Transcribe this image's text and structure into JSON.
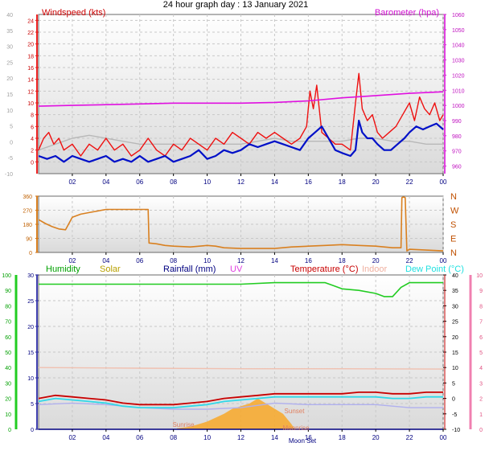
{
  "title": "24 hour graph day : 13 January 2021",
  "chart_data": [
    {
      "type": "line",
      "id": "wind-baro",
      "title": "",
      "label_left": "Windspeed (kts)",
      "label_right": "Barometer (hpa)",
      "x_ticks": [
        "02",
        "04",
        "06",
        "08",
        "10",
        "12",
        "14",
        "16",
        "18",
        "20",
        "22",
        "00"
      ],
      "xlim": [
        0,
        24
      ],
      "left_outer": {
        "ticks": [
          -10,
          -5,
          0,
          5,
          10,
          15,
          20,
          25,
          30,
          35,
          40
        ],
        "lim": [
          -10,
          40
        ]
      },
      "left_inner": {
        "ticks": [
          0,
          2,
          4,
          6,
          8,
          10,
          12,
          14,
          16,
          18,
          20,
          22,
          24
        ],
        "lim": [
          -2,
          25
        ]
      },
      "right": {
        "ticks": [
          960,
          970,
          980,
          990,
          1000,
          1010,
          1020,
          1030,
          1040,
          1050,
          1060
        ],
        "lim": [
          955,
          1060
        ]
      },
      "series": [
        {
          "name": "Barometer (hpa)",
          "color": "#e010e0",
          "x": [
            0,
            2,
            4,
            6,
            8,
            10,
            12,
            14,
            16,
            18,
            20,
            22,
            24
          ],
          "y": [
            999.5,
            1000,
            1000.5,
            1001,
            1001.5,
            1001.5,
            1001.5,
            1002,
            1003,
            1005,
            1006.5,
            1008,
            1009
          ]
        },
        {
          "color": "#ee1111",
          "x": [
            0,
            0.3,
            0.6,
            0.9,
            1.2,
            1.5,
            2,
            2.5,
            3,
            3.5,
            4,
            4.5,
            5,
            5.5,
            6,
            6.5,
            7,
            7.5,
            8,
            8.5,
            9,
            9.5,
            10,
            10.5,
            11,
            11.5,
            12,
            12.5,
            13,
            13.5,
            14,
            14.5,
            15,
            15.5,
            15.9,
            16.1,
            16.3,
            16.5,
            16.8,
            17.2,
            17.6,
            18,
            18.5,
            18.8,
            19,
            19.2,
            19.5,
            19.8,
            20.1,
            20.4,
            20.8,
            21.2,
            21.6,
            22,
            22.3,
            22.6,
            22.9,
            23.2,
            23.5,
            23.8,
            24
          ],
          "y": [
            2,
            4,
            5,
            3,
            4,
            2,
            3,
            1,
            3,
            2,
            4,
            2,
            3,
            1,
            2,
            4,
            2,
            1,
            3,
            2,
            4,
            3,
            2,
            4,
            3,
            5,
            4,
            3,
            5,
            4,
            5,
            4,
            3,
            4,
            6,
            12,
            9,
            13,
            5,
            4,
            3,
            3,
            2,
            10,
            15,
            9,
            7,
            8,
            5,
            4,
            5,
            6,
            8,
            10,
            7,
            11,
            9,
            8,
            10,
            7,
            8
          ]
        },
        {
          "color": "#0010c8",
          "x": [
            0,
            0.5,
            1,
            1.5,
            2,
            2.5,
            3,
            3.5,
            4,
            4.5,
            5,
            5.5,
            6,
            6.5,
            7,
            7.5,
            8,
            8.5,
            9,
            9.5,
            10,
            10.5,
            11,
            11.5,
            12,
            12.5,
            13,
            13.5,
            14,
            14.5,
            15,
            15.5,
            16,
            16.4,
            16.8,
            17.2,
            17.6,
            18,
            18.5,
            18.8,
            19,
            19.2,
            19.5,
            19.8,
            20.1,
            20.5,
            20.9,
            21.3,
            21.7,
            22,
            22.4,
            22.8,
            23.2,
            23.6,
            24
          ],
          "y": [
            1,
            0.5,
            1,
            0,
            1,
            0.5,
            0,
            0.5,
            1,
            0,
            0.5,
            0,
            1,
            0,
            0.5,
            1,
            0,
            0.5,
            1,
            2,
            0.5,
            1,
            2,
            1.5,
            2,
            3,
            2.5,
            3,
            3.5,
            3,
            2.5,
            2,
            4,
            5,
            6,
            4,
            2,
            1.5,
            1,
            2,
            7,
            5,
            4,
            4,
            3,
            2,
            2,
            3,
            4,
            5,
            6,
            5.5,
            6,
            6.5,
            5.5
          ]
        },
        {
          "color": "#b8b8b8",
          "x": [
            0,
            1,
            2,
            3,
            4,
            5,
            6,
            7,
            8,
            9,
            10,
            11,
            12,
            13,
            14,
            15,
            16,
            17,
            18,
            19,
            20,
            21,
            22,
            23,
            24
          ],
          "y": [
            2,
            3,
            4,
            4.5,
            4,
            3.5,
            3,
            3,
            3,
            3,
            3,
            3,
            3,
            3.5,
            4,
            3.5,
            3.5,
            3.5,
            3.5,
            4,
            4,
            3.5,
            3.5,
            3,
            3
          ]
        }
      ]
    },
    {
      "type": "line",
      "id": "wind-direction",
      "title": "",
      "x_ticks": [
        "02",
        "04",
        "06",
        "08",
        "10",
        "12",
        "14",
        "16",
        "18",
        "20",
        "22",
        "00"
      ],
      "xlim": [
        0,
        24
      ],
      "left": {
        "ticks": [
          0,
          90,
          180,
          270,
          360
        ],
        "lim": [
          0,
          360
        ]
      },
      "right_labels": [
        "N",
        "E",
        "S",
        "W",
        "N"
      ],
      "series": [
        {
          "color": "#d98020",
          "x": [
            0,
            0.4,
            0.8,
            1.2,
            1.6,
            2,
            2.5,
            3,
            3.5,
            4,
            5,
            6,
            6.5,
            6.55,
            7,
            7.5,
            8,
            9,
            10,
            10.5,
            11,
            12,
            13,
            14,
            15,
            16,
            17,
            18,
            19,
            20,
            21,
            21.5,
            21.55,
            21.65,
            21.75,
            21.85,
            22,
            23,
            24
          ],
          "y": [
            210,
            185,
            165,
            150,
            145,
            225,
            245,
            255,
            265,
            275,
            275,
            275,
            275,
            60,
            55,
            45,
            40,
            35,
            45,
            40,
            30,
            25,
            25,
            25,
            35,
            40,
            45,
            50,
            45,
            40,
            30,
            30,
            350,
            355,
            350,
            10,
            20,
            15,
            10
          ]
        }
      ]
    },
    {
      "type": "line",
      "id": "humidity-temp",
      "title": "",
      "legend": [
        "Humidity",
        "Solar",
        "Rainfall (mm)",
        "UV",
        "Temperature (°C)",
        "Indoor",
        "Dew Point (°C)"
      ],
      "legend_colors": [
        "#00a000",
        "#b8a000",
        "#000080",
        "#e040e0",
        "#c80000",
        "#f0b0a0",
        "#20e0e0"
      ],
      "x_ticks": [
        "02",
        "04",
        "06",
        "08",
        "10",
        "12",
        "14",
        "16",
        "18",
        "20",
        "22",
        "00"
      ],
      "xlim": [
        0,
        24
      ],
      "left_outer": {
        "ticks": [
          0,
          10,
          20,
          30,
          40,
          50,
          60,
          70,
          80,
          90,
          100
        ],
        "lim": [
          0,
          100
        ]
      },
      "left_inner": {
        "ticks": [
          0,
          5,
          10,
          15,
          20,
          25,
          30
        ],
        "lim": [
          0,
          30
        ]
      },
      "right_inner": {
        "ticks": [
          -10,
          -5,
          0,
          5,
          10,
          15,
          20,
          25,
          30,
          35,
          40
        ],
        "lim": [
          -10,
          40
        ]
      },
      "right_outer": {
        "ticks": [
          0,
          1,
          2,
          3,
          4,
          5,
          6,
          7,
          8,
          9,
          10
        ],
        "lim": [
          0,
          10
        ]
      },
      "annotations": [
        "Sunrise",
        "Sunset",
        "Moon Set",
        "Moonrise"
      ],
      "series": [
        {
          "name": "Humidity",
          "color": "#22cc22",
          "x": [
            0,
            2,
            4,
            6,
            8,
            10,
            12,
            14,
            16,
            17,
            17.5,
            18,
            19,
            20,
            20.5,
            21,
            21.5,
            22,
            24
          ],
          "y": [
            94,
            94,
            94,
            94,
            94,
            94,
            94,
            95,
            95,
            95,
            93,
            91,
            90,
            88,
            86,
            86,
            92,
            95,
            95
          ]
        },
        {
          "name": "Temperature (°C)",
          "color": "#c80000",
          "x": [
            0,
            1,
            2,
            3,
            4,
            5,
            6,
            7,
            8,
            9,
            10,
            11,
            12,
            13,
            14,
            15,
            16,
            17,
            18,
            19,
            20,
            21,
            22,
            23,
            24
          ],
          "y": [
            0,
            1,
            0.5,
            0,
            -0.5,
            -1.5,
            -2,
            -2,
            -2,
            -1.5,
            -1,
            0,
            0.5,
            1,
            1.5,
            1.5,
            1.5,
            1.5,
            1.5,
            2,
            2,
            1.5,
            1.5,
            2,
            2
          ]
        },
        {
          "name": "Dew Point (°C)",
          "color": "#30d8e8",
          "x": [
            0,
            1,
            2,
            3,
            4,
            5,
            6,
            7,
            8,
            9,
            10,
            11,
            12,
            13,
            14,
            15,
            16,
            17,
            18,
            19,
            20,
            21,
            22,
            23,
            24
          ],
          "y": [
            -1,
            0,
            -0.5,
            -1,
            -1.5,
            -2.5,
            -3,
            -3,
            -3,
            -2.5,
            -2,
            -1,
            -0.5,
            0,
            0.5,
            0.5,
            0.5,
            0.5,
            0.5,
            0.5,
            0.5,
            0,
            0,
            0.5,
            0.5
          ]
        },
        {
          "name": "Indoor",
          "color": "#f0c0b0",
          "x": [
            0,
            6,
            12,
            18,
            24
          ],
          "y": [
            10,
            9.8,
            9.6,
            9.6,
            9.5
          ]
        },
        {
          "name": "Solar",
          "color": "#f8a828",
          "x": [
            8.2,
            9,
            10,
            11,
            11.5,
            12,
            12.5,
            13,
            13.5,
            14,
            14.5,
            15,
            15.2
          ],
          "y": [
            0.2,
            0.5,
            1.5,
            3,
            4,
            4.5,
            5,
            6,
            5,
            4,
            3,
            1,
            0
          ]
        },
        {
          "name": "UV",
          "color": "#b0b0ee",
          "x": [
            0,
            2,
            4,
            6,
            8,
            10,
            12,
            14,
            16,
            18,
            20,
            22,
            24
          ],
          "y": [
            -2,
            -1.5,
            -2,
            -3,
            -3.5,
            -3.5,
            -3,
            -1.5,
            -2,
            -2,
            -2,
            -3,
            -3
          ]
        },
        {
          "name": "Rainfall (mm)",
          "color": "#000080",
          "x": [
            0,
            24
          ],
          "y": [
            0,
            0
          ]
        }
      ]
    }
  ]
}
